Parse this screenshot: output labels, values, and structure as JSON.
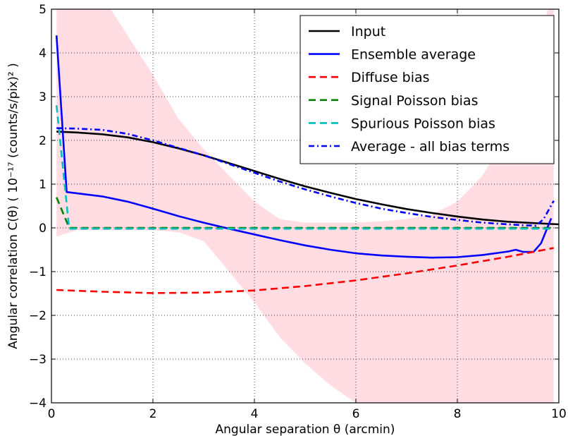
{
  "chart_data": {
    "type": "line",
    "title": "",
    "xlabel": "Angular separation θ (arcmin)",
    "ylabel": "Angular correlation C(θ) ( 10⁻¹⁷ (counts/s/pix)² )",
    "xlim": [
      0,
      10
    ],
    "ylim": [
      -4,
      5
    ],
    "x_ticks": [
      0,
      2,
      4,
      6,
      8,
      10
    ],
    "y_ticks": [
      -4,
      -3,
      -2,
      -1,
      0,
      1,
      2,
      3,
      4,
      5
    ],
    "x_tick_labels": [
      "0",
      "2",
      "4",
      "6",
      "8",
      "10"
    ],
    "y_tick_labels": [
      "−4",
      "−3",
      "−2",
      "−1",
      "0",
      "1",
      "2",
      "3",
      "4",
      "5"
    ],
    "grid": true,
    "legend_position": "top-right",
    "band": {
      "color": "#ffdde3",
      "x": [
        0.1,
        0.5,
        1.0,
        1.5,
        2.0,
        2.5,
        3.0,
        3.5,
        4.0,
        4.5,
        5.0,
        5.5,
        6.0,
        6.5,
        7.0,
        7.5,
        8.0,
        8.5,
        9.0,
        9.3,
        9.6,
        9.9
      ],
      "upper": [
        5.5,
        5.5,
        5.3,
        4.4,
        3.5,
        2.5,
        1.8,
        1.2,
        0.6,
        0.2,
        0.12,
        0.12,
        0.12,
        0.15,
        0.2,
        0.3,
        0.6,
        1.2,
        2.2,
        3.0,
        4.2,
        5.5
      ],
      "lower": [
        -0.2,
        -0.05,
        -0.05,
        -0.05,
        -0.05,
        -0.1,
        -0.3,
        -1.0,
        -1.7,
        -2.5,
        -3.1,
        -3.6,
        -4.0,
        -4.3,
        -4.3,
        -4.3,
        -4.3,
        -4.3,
        -4.3,
        -4.3,
        -4.3,
        -4.3
      ]
    },
    "series": [
      {
        "name": "Input",
        "color": "#000000",
        "dash": "solid",
        "x": [
          0.1,
          0.5,
          1.0,
          1.5,
          2.0,
          2.5,
          3.0,
          3.5,
          4.0,
          4.5,
          5.0,
          5.5,
          6.0,
          6.5,
          7.0,
          7.5,
          8.0,
          8.5,
          9.0,
          9.5,
          10.0
        ],
        "y": [
          2.2,
          2.18,
          2.14,
          2.07,
          1.96,
          1.82,
          1.66,
          1.48,
          1.3,
          1.12,
          0.95,
          0.8,
          0.66,
          0.54,
          0.43,
          0.34,
          0.26,
          0.19,
          0.14,
          0.11,
          0.08
        ]
      },
      {
        "name": "Ensemble average",
        "color": "#0000ff",
        "dash": "solid",
        "x": [
          0.1,
          0.3,
          1.0,
          1.5,
          2.0,
          2.5,
          3.0,
          3.5,
          4.0,
          4.5,
          5.0,
          5.5,
          6.0,
          6.5,
          7.0,
          7.5,
          8.0,
          8.5,
          9.0,
          9.15,
          9.3,
          9.5,
          9.65,
          9.85
        ],
        "y": [
          4.4,
          0.82,
          0.72,
          0.6,
          0.44,
          0.27,
          0.12,
          -0.02,
          -0.15,
          -0.28,
          -0.4,
          -0.5,
          -0.58,
          -0.63,
          -0.66,
          -0.68,
          -0.67,
          -0.62,
          -0.54,
          -0.5,
          -0.55,
          -0.55,
          -0.35,
          0.22
        ]
      },
      {
        "name": "Diffuse bias",
        "color": "#ff0000",
        "dash": "dashed",
        "x": [
          0.1,
          1.0,
          2.0,
          3.0,
          4.0,
          5.0,
          6.0,
          7.0,
          8.0,
          9.0,
          9.9
        ],
        "y": [
          -1.42,
          -1.46,
          -1.49,
          -1.48,
          -1.43,
          -1.33,
          -1.2,
          -1.04,
          -0.86,
          -0.66,
          -0.46
        ]
      },
      {
        "name": "Signal Poisson bias",
        "color": "#008000",
        "dash": "dashed",
        "x": [
          0.1,
          0.35,
          1.0,
          2.0,
          4.0,
          6.0,
          8.0,
          9.9
        ],
        "y": [
          0.7,
          0.0,
          0.0,
          0.0,
          0.0,
          0.0,
          0.0,
          0.0
        ]
      },
      {
        "name": "Spurious Poisson bias",
        "color": "#00bfbf",
        "dash": "dashed",
        "x": [
          0.1,
          0.35,
          1.0,
          2.0,
          4.0,
          6.0,
          8.0,
          9.9
        ],
        "y": [
          2.8,
          -0.02,
          -0.02,
          -0.02,
          -0.02,
          -0.02,
          -0.02,
          -0.02
        ]
      },
      {
        "name": "Average - all bias terms",
        "color": "#0000ff",
        "dash": "dashdot",
        "x": [
          0.1,
          0.5,
          1.0,
          1.5,
          2.0,
          2.5,
          3.0,
          3.5,
          4.0,
          4.5,
          5.0,
          5.5,
          6.0,
          6.5,
          7.0,
          7.5,
          8.0,
          8.5,
          9.0,
          9.3,
          9.55,
          9.7,
          9.9
        ],
        "y": [
          2.28,
          2.27,
          2.24,
          2.15,
          2.0,
          1.83,
          1.66,
          1.46,
          1.26,
          1.06,
          0.88,
          0.72,
          0.57,
          0.44,
          0.34,
          0.25,
          0.18,
          0.12,
          0.08,
          0.06,
          0.05,
          0.2,
          0.62
        ]
      }
    ]
  }
}
